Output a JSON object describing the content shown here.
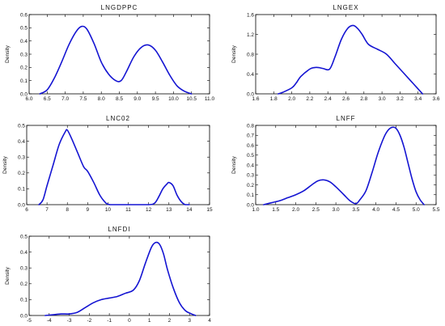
{
  "colors": {
    "line": "#1414d2",
    "axis": "#000000",
    "background": "#ffffff"
  },
  "chart_data": [
    {
      "type": "line",
      "title": "LNGDPPC",
      "ylabel": "Density",
      "xlim": [
        6.0,
        11.0
      ],
      "ylim": [
        0.0,
        0.6
      ],
      "xticks": [
        "6.0",
        "6.5",
        "7.0",
        "7.5",
        "8.0",
        "8.5",
        "9.0",
        "9.5",
        "10.0",
        "10.5",
        "11.0"
      ],
      "yticks": [
        "0.0",
        "0.1",
        "0.2",
        "0.3",
        "0.4",
        "0.5",
        "0.6"
      ],
      "series": [
        {
          "x": [
            6.3,
            6.5,
            6.7,
            6.9,
            7.1,
            7.3,
            7.45,
            7.6,
            7.8,
            8.0,
            8.2,
            8.4,
            8.55,
            8.7,
            8.9,
            9.1,
            9.3,
            9.5,
            9.7,
            9.9,
            10.1,
            10.3,
            10.5
          ],
          "y": [
            0.0,
            0.03,
            0.12,
            0.24,
            0.37,
            0.47,
            0.51,
            0.49,
            0.38,
            0.24,
            0.15,
            0.1,
            0.1,
            0.17,
            0.28,
            0.35,
            0.37,
            0.33,
            0.24,
            0.14,
            0.06,
            0.02,
            0.0
          ]
        }
      ]
    },
    {
      "type": "line",
      "title": "LNGEX",
      "ylabel": "Density",
      "xlim": [
        1.6,
        3.6
      ],
      "ylim": [
        0.0,
        1.6
      ],
      "xticks": [
        "1.6",
        "1.8",
        "2.0",
        "2.2",
        "2.4",
        "2.6",
        "2.8",
        "3.0",
        "3.2",
        "3.4",
        "3.6"
      ],
      "yticks": [
        "0.0",
        "0.4",
        "0.8",
        "1.2",
        "1.6"
      ],
      "series": [
        {
          "x": [
            1.85,
            1.9,
            2.0,
            2.05,
            2.1,
            2.2,
            2.25,
            2.3,
            2.35,
            2.42,
            2.48,
            2.55,
            2.62,
            2.68,
            2.73,
            2.78,
            2.85,
            2.95,
            3.05,
            3.15,
            3.25,
            3.35,
            3.45
          ],
          "y": [
            0.0,
            0.03,
            0.12,
            0.22,
            0.35,
            0.5,
            0.53,
            0.53,
            0.51,
            0.5,
            0.75,
            1.1,
            1.32,
            1.38,
            1.32,
            1.2,
            1.0,
            0.9,
            0.8,
            0.6,
            0.4,
            0.2,
            0.0
          ]
        }
      ]
    },
    {
      "type": "line",
      "title": "LNC02",
      "ylabel": "Density",
      "xlim": [
        6,
        15
      ],
      "ylim": [
        0.0,
        0.5
      ],
      "xticks": [
        "6",
        "7",
        "8",
        "9",
        "10",
        "11",
        "12",
        "13",
        "14",
        "15"
      ],
      "yticks": [
        "0.0",
        "0.1",
        "0.2",
        "0.3",
        "0.4",
        "0.5"
      ],
      "series": [
        {
          "x": [
            6.6,
            6.8,
            7.0,
            7.3,
            7.6,
            7.9,
            8.0,
            8.2,
            8.5,
            8.8,
            9.0,
            9.3,
            9.6,
            9.9,
            10.1,
            10.3,
            11.0,
            12.0,
            12.3,
            12.5,
            12.7,
            12.9,
            13.0,
            13.2,
            13.4,
            13.6,
            13.8,
            14.0
          ],
          "y": [
            0.0,
            0.03,
            0.12,
            0.25,
            0.38,
            0.46,
            0.47,
            0.42,
            0.33,
            0.24,
            0.21,
            0.14,
            0.06,
            0.01,
            0.0,
            0.0,
            0.0,
            0.0,
            0.01,
            0.05,
            0.1,
            0.13,
            0.14,
            0.12,
            0.06,
            0.02,
            0.0,
            0.0
          ]
        }
      ]
    },
    {
      "type": "line",
      "title": "LNFF",
      "ylabel": "Density",
      "xlim": [
        1.0,
        5.5
      ],
      "ylim": [
        0.0,
        0.8
      ],
      "xticks": [
        "1.0",
        "1.5",
        "2.0",
        "2.5",
        "3.0",
        "3.5",
        "4.0",
        "4.5",
        "5.0",
        "5.5"
      ],
      "yticks": [
        "0.0",
        "0.1",
        "0.2",
        "0.3",
        "0.4",
        "0.5",
        "0.6",
        "0.7",
        "0.8"
      ],
      "series": [
        {
          "x": [
            1.2,
            1.4,
            1.6,
            1.8,
            2.0,
            2.2,
            2.4,
            2.55,
            2.7,
            2.85,
            3.0,
            3.2,
            3.35,
            3.5,
            3.6,
            3.75,
            3.9,
            4.05,
            4.2,
            4.3,
            4.4,
            4.5,
            4.6,
            4.7,
            4.8,
            4.9,
            5.0,
            5.1,
            5.2
          ],
          "y": [
            0.0,
            0.02,
            0.04,
            0.07,
            0.1,
            0.14,
            0.2,
            0.24,
            0.25,
            0.23,
            0.18,
            0.1,
            0.04,
            0.01,
            0.05,
            0.14,
            0.32,
            0.52,
            0.68,
            0.75,
            0.78,
            0.77,
            0.7,
            0.58,
            0.42,
            0.26,
            0.13,
            0.05,
            0.0
          ]
        }
      ]
    },
    {
      "type": "line",
      "title": "LNFDI",
      "ylabel": "Density",
      "xlim": [
        -5,
        4
      ],
      "ylim": [
        0.0,
        0.5
      ],
      "xticks": [
        "-5",
        "-4",
        "-3",
        "-2",
        "-1",
        "0",
        "1",
        "2",
        "3",
        "4"
      ],
      "yticks": [
        "0.0",
        "0.1",
        "0.2",
        "0.3",
        "0.4",
        "0.5"
      ],
      "series": [
        {
          "x": [
            -4.2,
            -3.8,
            -3.4,
            -3.0,
            -2.6,
            -2.2,
            -1.8,
            -1.4,
            -1.0,
            -0.6,
            -0.2,
            0.2,
            0.5,
            0.8,
            1.1,
            1.3,
            1.5,
            1.7,
            1.9,
            2.2,
            2.5,
            2.8,
            3.1,
            3.3
          ],
          "y": [
            0.0,
            0.005,
            0.01,
            0.01,
            0.02,
            0.05,
            0.08,
            0.1,
            0.11,
            0.12,
            0.14,
            0.16,
            0.22,
            0.33,
            0.43,
            0.46,
            0.45,
            0.39,
            0.29,
            0.17,
            0.08,
            0.03,
            0.01,
            0.0
          ]
        }
      ]
    }
  ]
}
